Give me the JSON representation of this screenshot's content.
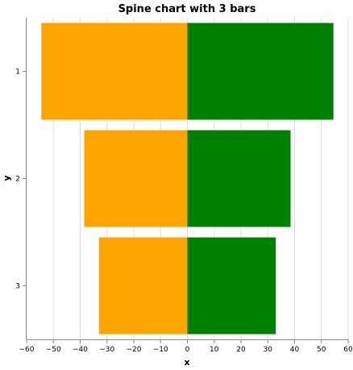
{
  "chart_data": {
    "type": "bar",
    "orientation": "horizontal-diverging",
    "title": "Spine chart with 3 bars",
    "xlabel": "x",
    "ylabel": "y",
    "xlim": [
      -60,
      60
    ],
    "x_ticks": [
      -60,
      -50,
      -40,
      -30,
      -20,
      -10,
      0,
      10,
      20,
      30,
      40,
      50,
      60
    ],
    "categories": [
      "1",
      "2",
      "3"
    ],
    "series": [
      {
        "values": [
          -54.5,
          -38.5,
          -33
        ],
        "color": "#FFA500"
      },
      {
        "values": [
          54.5,
          38.5,
          33
        ],
        "color": "#008000"
      }
    ],
    "grid": true
  }
}
